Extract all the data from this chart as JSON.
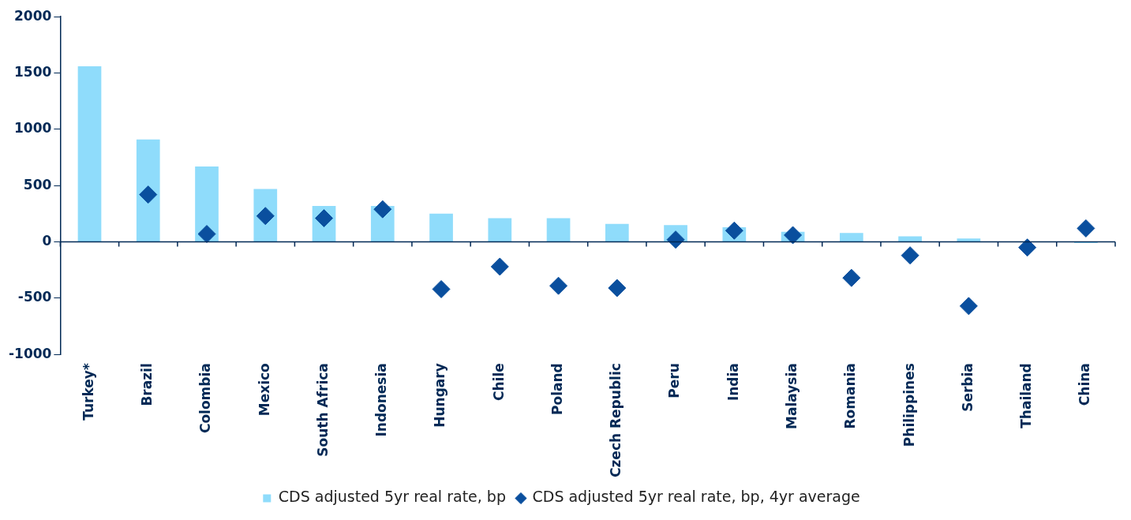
{
  "chart_data": {
    "type": "bar",
    "categories": [
      "Turkey*",
      "Brazil",
      "Colombia",
      "Mexico",
      "South Africa",
      "Indonesia",
      "Hungary",
      "Chile",
      "Poland",
      "Czech Republic",
      "Peru",
      "India",
      "Malaysia",
      "Romania",
      "Philippines",
      "Serbia",
      "Thailand",
      "China"
    ],
    "series": [
      {
        "name": "CDS adjusted 5yr real rate, bp",
        "color": "#8fdcfb",
        "values": [
          1560,
          910,
          670,
          470,
          320,
          320,
          250,
          210,
          210,
          160,
          150,
          130,
          90,
          80,
          50,
          30,
          0,
          -10
        ]
      },
      {
        "name": "CDS adjusted 5yr real rate, bp, 4yr average",
        "type": "scatter",
        "color": "#0a4f9e",
        "values": [
          null,
          420,
          70,
          230,
          210,
          290,
          -420,
          -220,
          -390,
          -410,
          20,
          100,
          60,
          -320,
          -120,
          -570,
          -50,
          120
        ]
      }
    ],
    "ylim": [
      -1000,
      2000
    ],
    "yticks": [
      {
        "value": -1000,
        "label": "-1000"
      },
      -500,
      0,
      500,
      {
        "value": 1000,
        "label": "1000"
      },
      {
        "value": 1500,
        "label": "1500"
      },
      {
        "value": 2000,
        "label": "2000"
      }
    ],
    "grid": false,
    "legend": "bottom",
    "marker": "diamond"
  }
}
